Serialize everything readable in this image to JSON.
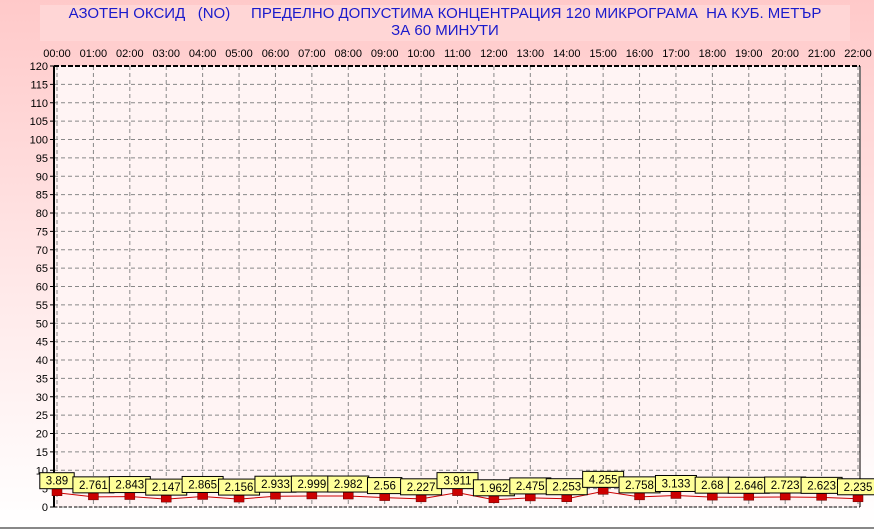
{
  "chart_data": {
    "type": "line",
    "title": "АЗОТЕН ОКСИД   (NO)     ПРЕДЕЛНО ДОПУСТИМА КОНЦЕНТРАЦИЯ 120 МИКРОГРАМА  НА КУБ. МЕТЪР",
    "subtitle": "ЗА 60 МИНУТИ",
    "categories": [
      "00:00",
      "01:00",
      "02:00",
      "03:00",
      "04:00",
      "05:00",
      "06:00",
      "07:00",
      "08:00",
      "09:00",
      "10:00",
      "11:00",
      "12:00",
      "13:00",
      "14:00",
      "15:00",
      "16:00",
      "17:00",
      "18:00",
      "19:00",
      "20:00",
      "21:00",
      "22:00"
    ],
    "values": [
      3.89,
      2.761,
      2.843,
      2.147,
      2.865,
      2.156,
      2.933,
      2.999,
      2.982,
      2.56,
      2.227,
      3.911,
      1.962,
      2.475,
      2.253,
      4.255,
      2.758,
      3.133,
      2.68,
      2.646,
      2.723,
      2.623,
      2.235
    ],
    "data_labels": [
      "3.89",
      "2.761",
      "2.843",
      "2.147",
      "2.865",
      "2.156",
      "2.933",
      "2.999",
      "2.982",
      "2.56",
      "2.227",
      "3.911",
      "1.962",
      "2.475",
      "2.253",
      "4.255",
      "2.758",
      "3.133",
      "2.68",
      "2.646",
      "2.723",
      "2.623",
      "2.235"
    ],
    "ylim": [
      0,
      120
    ],
    "yticks": [
      "0",
      "5",
      "10",
      "15",
      "20",
      "25",
      "30",
      "35",
      "40",
      "45",
      "50",
      "55",
      "60",
      "65",
      "70",
      "75",
      "80",
      "85",
      "90",
      "95",
      "100",
      "105",
      "110",
      "115",
      "120"
    ],
    "xaxis_position": "top",
    "grid": true,
    "colors": {
      "line": "#cc0000",
      "marker": "#cc0000",
      "label_bg": "#ffff99",
      "title": "#1a1acc"
    }
  }
}
